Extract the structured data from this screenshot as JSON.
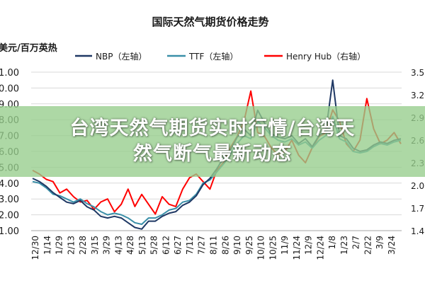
{
  "chart_data": {
    "type": "line",
    "title": "国际天然气期货价格走势",
    "ylabel_left": "美元/百万英热",
    "x_ticks": [
      "12/30",
      "1/14",
      "1/29",
      "2/13",
      "2/28",
      "3/15",
      "3/29",
      "4/13",
      "4/28",
      "5/13",
      "5/28",
      "6/12",
      "6/27",
      "7/12",
      "7/27",
      "8/11",
      "8/26",
      "9/10",
      "9/25",
      "10/10",
      "10/25",
      "11/9",
      "11/24",
      "12/9",
      "12/24",
      "1/8",
      "1/23",
      "2/7",
      "2/22",
      "3/9",
      "3/24"
    ],
    "y_left_ticks": [
      "1.00",
      "2.00",
      "3.00",
      "4.00",
      "5.00",
      "6.00",
      "7.00",
      "8.00",
      "9.00",
      "10.00",
      "11.00"
    ],
    "y_left_range": [
      1,
      11
    ],
    "y_right_ticks": [
      "1.40",
      "1.70",
      "2.00",
      "2.30",
      "2.60",
      "2.90",
      "3.20",
      "3.50"
    ],
    "y_right_range": [
      1.4,
      3.5
    ],
    "legend_position": "top",
    "series": [
      {
        "name": "NBP（左轴）",
        "color": "#1f3864",
        "axis": "left",
        "values": [
          4.3,
          4.1,
          3.8,
          3.4,
          3.1,
          2.8,
          2.7,
          2.9,
          2.5,
          2.3,
          1.9,
          1.8,
          1.9,
          1.8,
          1.5,
          1.2,
          1.1,
          1.6,
          1.6,
          1.9,
          2.1,
          2.2,
          2.6,
          2.8,
          3.2,
          3.9,
          4.3,
          4.9,
          5.6,
          6.1,
          6.9,
          7.4,
          7.0,
          8.6,
          7.8,
          7.1,
          6.9,
          6.8,
          7.0,
          6.5,
          6.8,
          6.3,
          7.0,
          7.3,
          10.5,
          7.0,
          6.8,
          6.2,
          6.0,
          6.1,
          6.4,
          6.6,
          6.5,
          6.7,
          6.8
        ]
      },
      {
        "name": "TTF（左轴）",
        "color": "#3a8fa8",
        "axis": "left",
        "values": [
          4.1,
          4.0,
          3.7,
          3.3,
          3.2,
          3.0,
          2.8,
          3.0,
          2.7,
          2.5,
          2.2,
          2.0,
          2.1,
          2.0,
          1.8,
          1.5,
          1.4,
          1.8,
          1.8,
          2.0,
          2.3,
          2.4,
          2.8,
          2.9,
          3.3,
          4.0,
          4.2,
          4.7,
          5.2,
          5.8,
          6.5,
          7.0,
          6.8,
          7.9,
          7.5,
          7.0,
          6.7,
          6.6,
          6.8,
          6.4,
          6.6,
          6.2,
          6.7,
          7.0,
          8.2,
          6.8,
          6.6,
          6.0,
          5.9,
          6.0,
          6.3,
          6.5,
          6.4,
          6.6,
          6.7
        ]
      },
      {
        "name": "Henry Hub（右轴）",
        "color": "#ff0000",
        "axis": "right",
        "values": [
          2.2,
          2.15,
          2.08,
          2.05,
          1.9,
          1.95,
          1.85,
          1.78,
          1.8,
          1.68,
          1.78,
          1.82,
          1.65,
          1.75,
          1.95,
          1.72,
          1.88,
          1.75,
          1.62,
          1.85,
          1.75,
          1.72,
          1.95,
          2.1,
          2.15,
          2.05,
          1.95,
          2.2,
          2.3,
          2.5,
          2.65,
          2.85,
          3.25,
          2.7,
          2.65,
          2.5,
          2.4,
          2.45,
          2.6,
          2.4,
          2.3,
          2.5,
          2.65,
          2.7,
          3.0,
          2.85,
          2.55,
          2.45,
          2.6,
          3.15,
          2.75,
          2.55,
          2.6,
          2.7,
          2.55
        ]
      }
    ],
    "colors": {
      "banner": "#96cd8c",
      "grid": "#d9d9d9"
    }
  },
  "banner": {
    "line1": "台湾天然气期货实时行情/台湾天",
    "line2": "然气断气最新动态"
  }
}
